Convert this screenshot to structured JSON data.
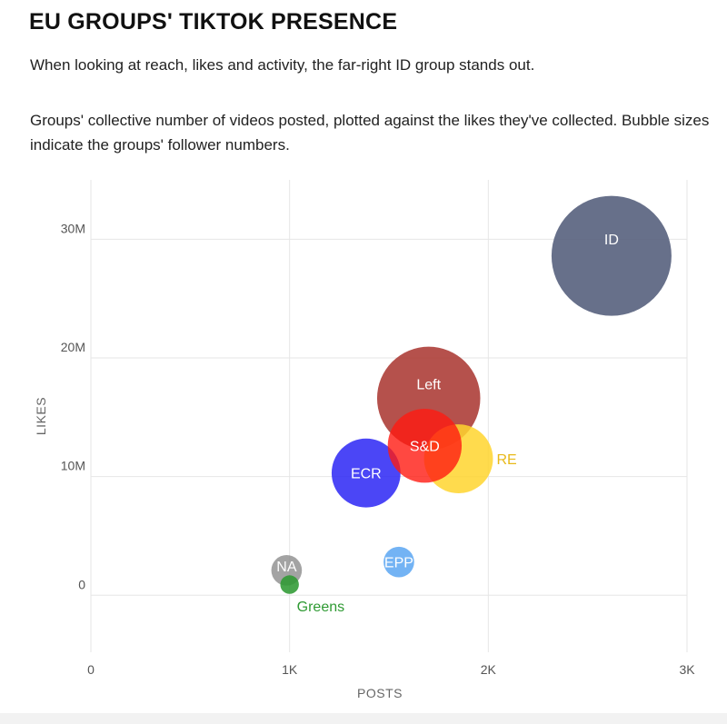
{
  "header": {
    "title": "EU GROUPS' TIKTOK PRESENCE",
    "subtitle": "When looking at reach, likes and activity, the far-right ID group stands out.",
    "description": "Groups' collective number of videos posted, plotted against the likes they've collected. Bubble sizes indicate the groups' follower numbers."
  },
  "chart_data": {
    "type": "scatter",
    "xlabel": "POSTS",
    "ylabel": "LIKES",
    "xlim": [
      0,
      3000
    ],
    "ylim": [
      -4800000,
      35000000
    ],
    "x_ticks": [
      {
        "value": 0,
        "label": "0"
      },
      {
        "value": 1000,
        "label": "1K"
      },
      {
        "value": 2000,
        "label": "2K"
      },
      {
        "value": 3000,
        "label": "3K"
      }
    ],
    "y_ticks": [
      {
        "value": 0,
        "label": "0"
      },
      {
        "value": 10000000,
        "label": "10M"
      },
      {
        "value": 20000000,
        "label": "20M"
      },
      {
        "value": 30000000,
        "label": "30M"
      }
    ],
    "grid": true,
    "bubble_size_meaning": "followers (relative)",
    "points": [
      {
        "name": "ID",
        "posts": 2620,
        "likes": 28600000,
        "size": 1.0,
        "color": "#5a6480",
        "opacity": 0.92,
        "label_color": "#ffffff",
        "label_pos": "upper"
      },
      {
        "name": "Left",
        "posts": 1700,
        "likes": 16600000,
        "size": 0.74,
        "color": "#a8332d",
        "opacity": 0.85,
        "label_color": "#ffffff",
        "label_pos": "upper"
      },
      {
        "name": "ECR",
        "posts": 1385,
        "likes": 10300000,
        "size": 0.33,
        "color": "#2b26f5",
        "opacity": 0.85,
        "label_color": "#ffffff",
        "label_pos": "center"
      },
      {
        "name": "RE",
        "posts": 1850,
        "likes": 11500000,
        "size": 0.33,
        "color": "#ffd52e",
        "opacity": 0.85,
        "label_color": "#e8b91a",
        "label_pos": "right"
      },
      {
        "name": "S&D",
        "posts": 1680,
        "likes": 12600000,
        "size": 0.38,
        "color": "#ff1a12",
        "opacity": 0.8,
        "label_color": "#ffffff",
        "label_pos": "center"
      },
      {
        "name": "EPP",
        "posts": 1550,
        "likes": 2800000,
        "size": 0.065,
        "color": "#5aa6f2",
        "opacity": 0.85,
        "label_color": "#ffffff",
        "label_pos": "center"
      },
      {
        "name": "NA",
        "posts": 985,
        "likes": 2100000,
        "size": 0.065,
        "color": "#8c8c8c",
        "opacity": 0.8,
        "label_color": "#ffffff",
        "label_pos": "upper"
      },
      {
        "name": "Greens",
        "posts": 1000,
        "likes": 900000,
        "size": 0.024,
        "color": "#2f9a33",
        "opacity": 0.88,
        "label_color": "#2f9a33",
        "label_pos": "below-right"
      }
    ]
  }
}
